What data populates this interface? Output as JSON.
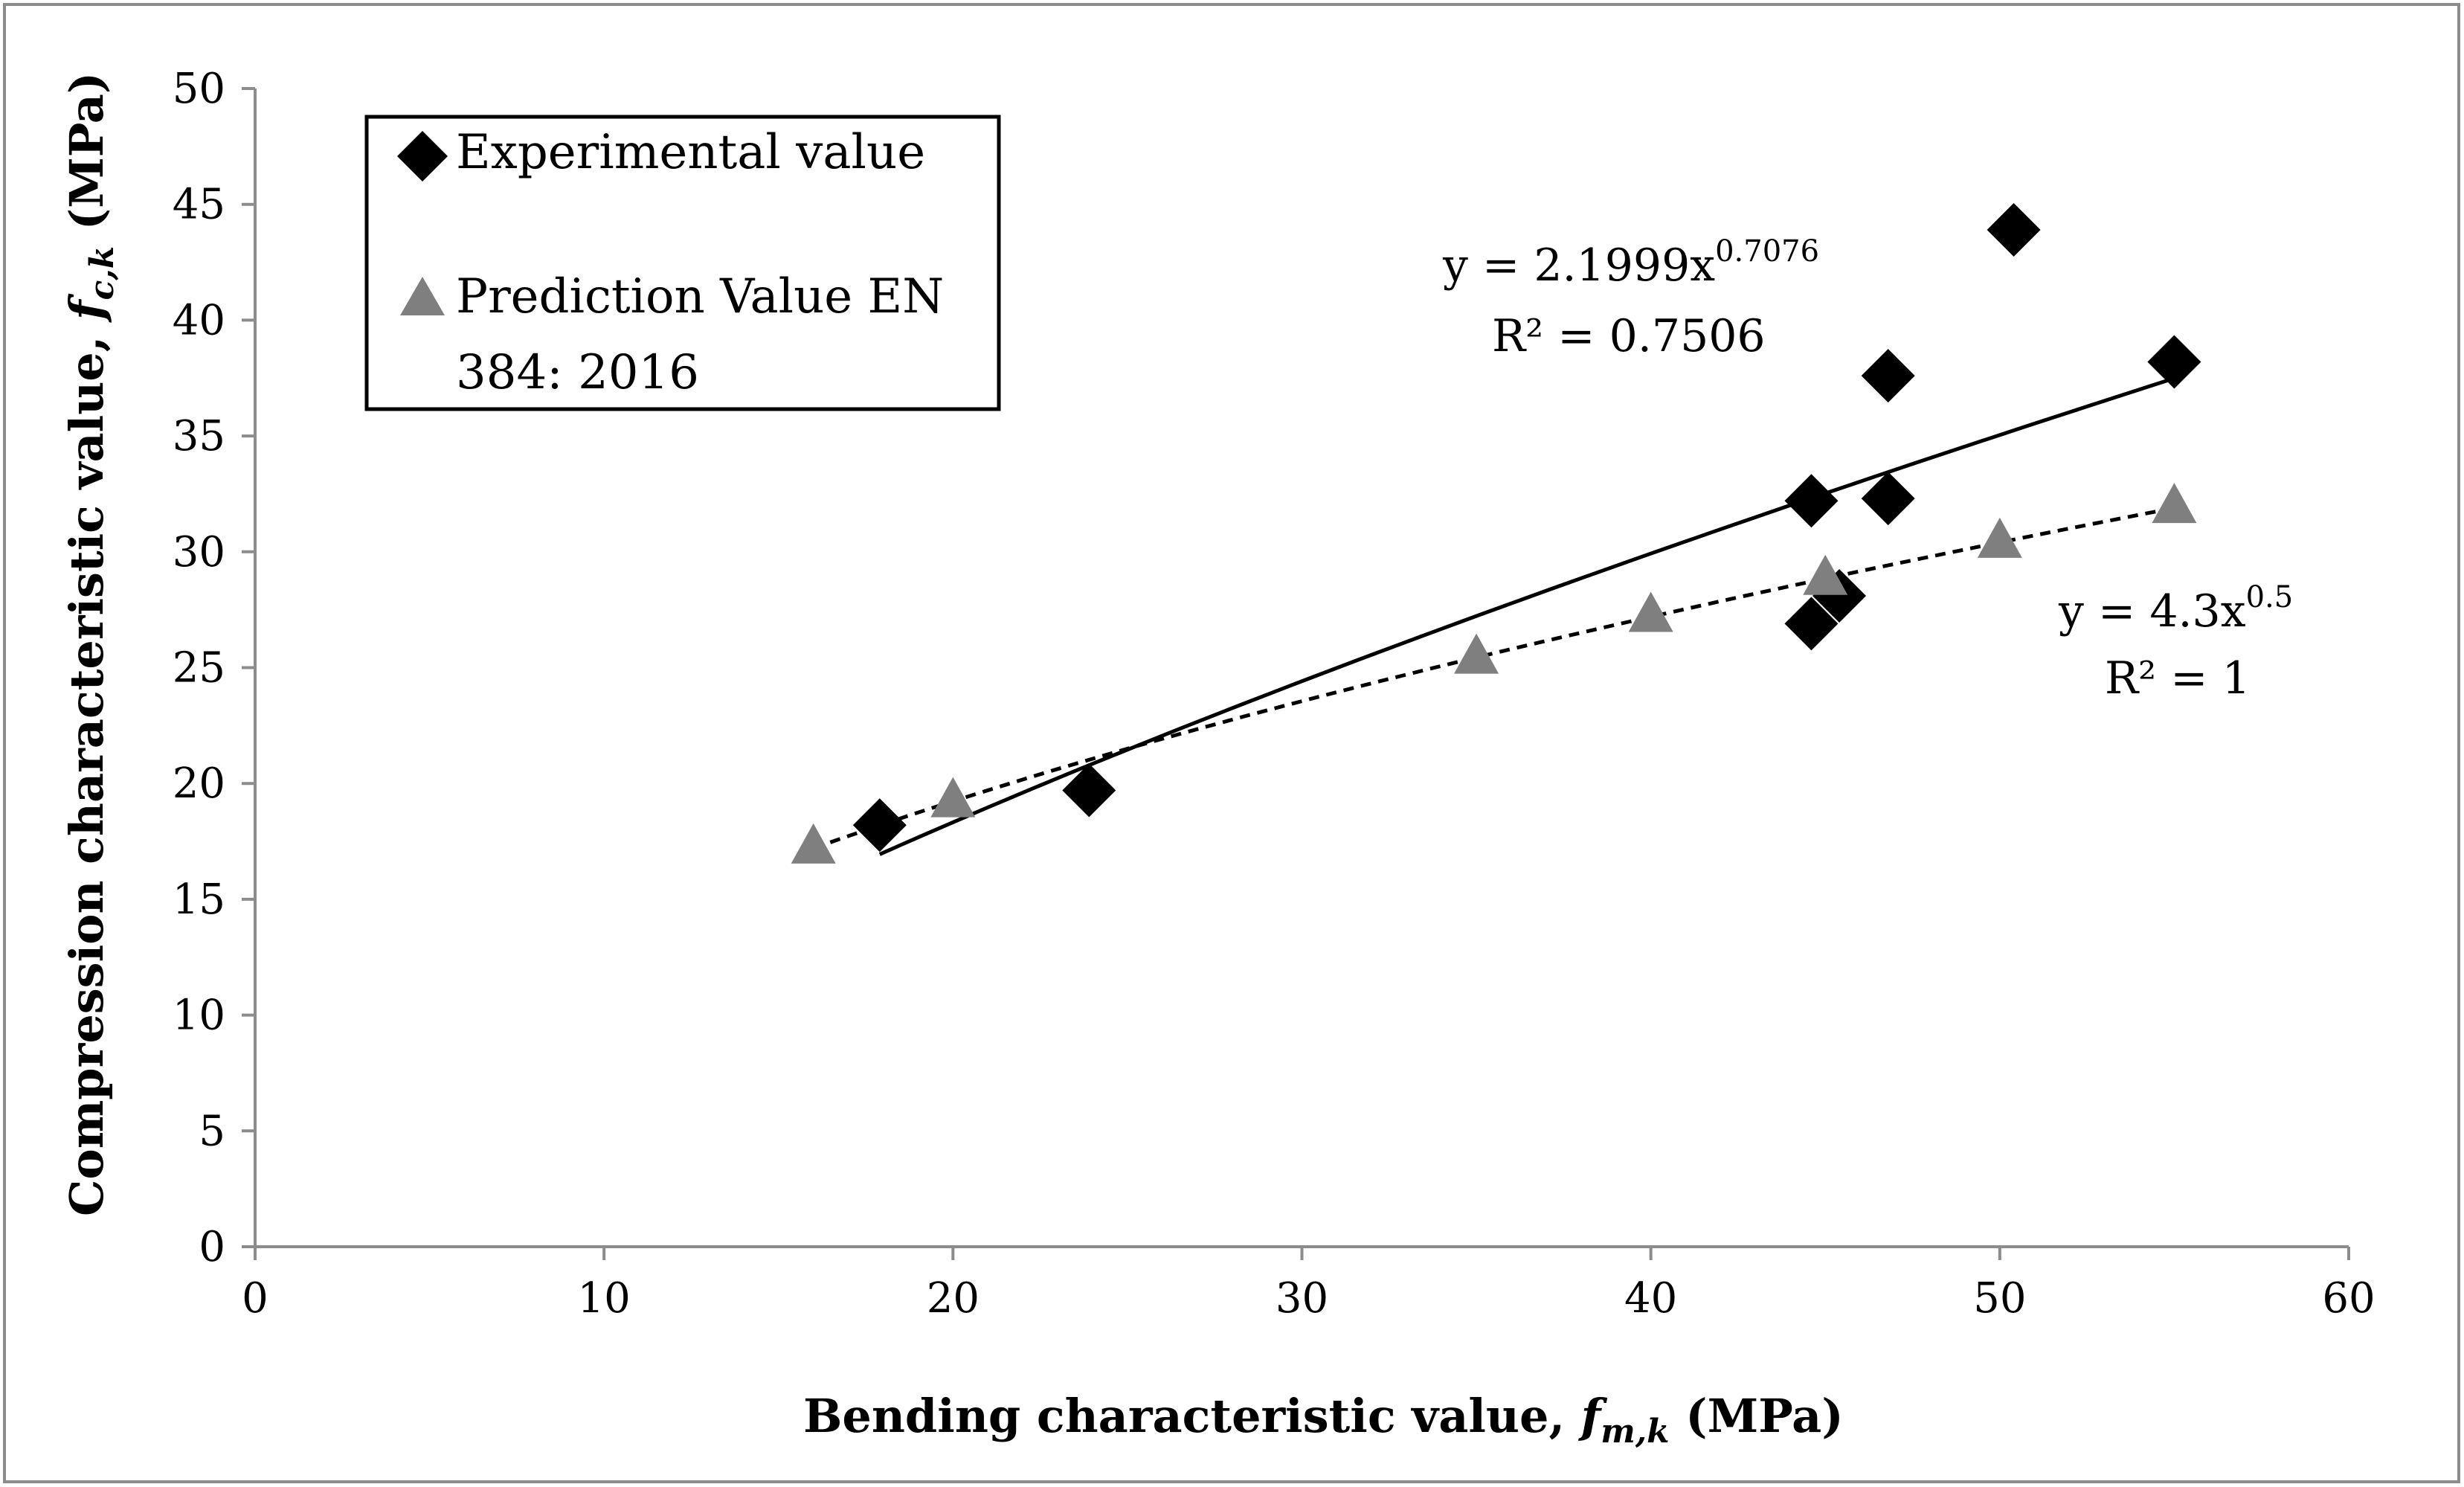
{
  "chart_data": {
    "type": "scatter",
    "xlim": [
      0,
      60
    ],
    "ylim": [
      0,
      50
    ],
    "xticks": [
      "0",
      "10",
      "20",
      "30",
      "40",
      "50",
      "60"
    ],
    "yticks": [
      "0",
      "5",
      "10",
      "15",
      "20",
      "25",
      "30",
      "35",
      "40",
      "45",
      "50"
    ],
    "xlabel": {
      "main": "Bending characteristic value, ",
      "symbol": "f",
      "subscript": "m,k",
      "unit": " (MPa)"
    },
    "ylabel": {
      "main": "Compression characteristic value, ",
      "symbol": "f",
      "subscript": "c,k",
      "unit": " (MPa)"
    },
    "grid": false,
    "legend_position": "top-left",
    "series": [
      {
        "name": "Experimental value",
        "marker": "diamond",
        "color": "#000000",
        "x": [
          17.9,
          23.9,
          44.6,
          44.6,
          45.4,
          46.8,
          46.8,
          50.4,
          55.0
        ],
        "y": [
          18.2,
          19.7,
          32.2,
          26.9,
          28.1,
          32.3,
          37.6,
          43.9,
          38.2
        ]
      },
      {
        "name_line1": "Prediction Value EN",
        "name_line2": "384: 2016",
        "marker": "triangle",
        "color": "#7f7f7f",
        "x": [
          16,
          20,
          35,
          40,
          45,
          50,
          55
        ],
        "y": [
          17.2,
          19.2,
          25.4,
          27.2,
          28.8,
          30.4,
          31.9
        ]
      }
    ],
    "trendlines": [
      {
        "style": "solid",
        "color": "#000000",
        "coef": 2.1999,
        "exp": 0.7076,
        "x_range": [
          17.9,
          55.0
        ],
        "eq_prefix": "y = 2.1999x",
        "eq_exp": "0.7076",
        "r2": "R² = 0.7506"
      },
      {
        "style": "dashed",
        "color": "#000000",
        "coef": 4.3,
        "exp": 0.5,
        "x_range": [
          16,
          55
        ],
        "eq_prefix": "y = 4.3x",
        "eq_exp": "0.5",
        "r2": "R² = 1"
      }
    ]
  }
}
